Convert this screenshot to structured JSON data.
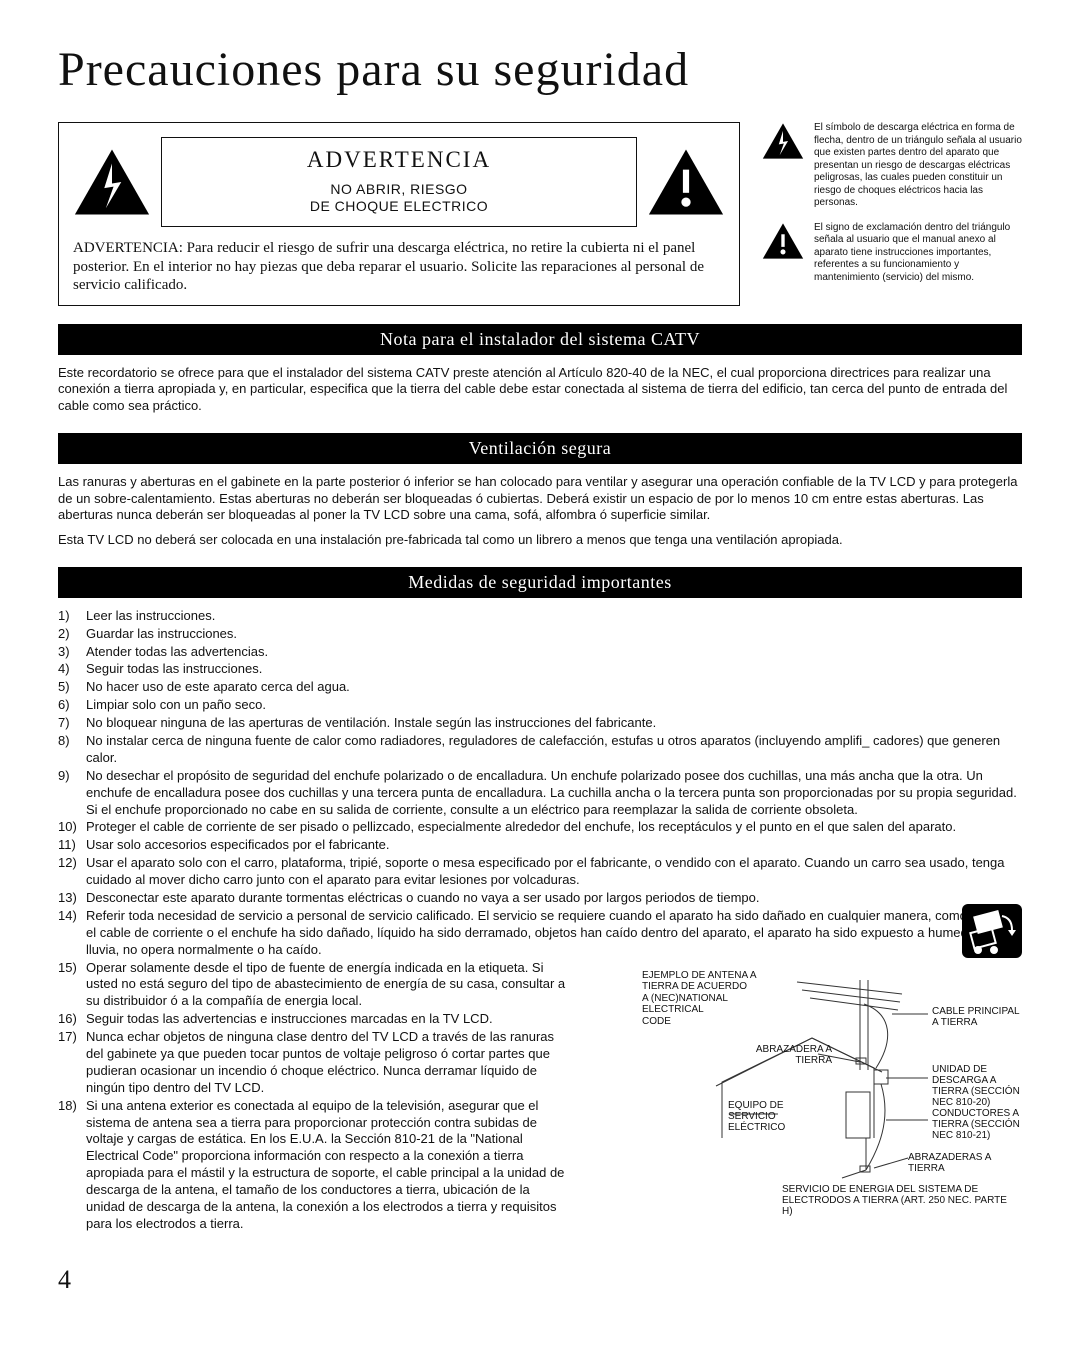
{
  "page": {
    "title": "Precauciones para su seguridad",
    "number": "4"
  },
  "warning_box": {
    "adv_title": "ADVERTENCIA",
    "adv_sub_line1": "NO ABRIR, RIESGO",
    "adv_sub_line2": "DE CHOQUE ELECTRICO",
    "text": "ADVERTENCIA:  Para reducir el riesgo de sufrir una descarga eléctrica, no retire la cubierta ni el panel posterior. En el interior no hay piezas que deba reparar el usuario. Solicite las reparaciones al personal de servicio calificado."
  },
  "side_symbols": {
    "lightning": "El símbolo de descarga eléctrica en forma de flecha, dentro de un triángulo señala al usuario que existen partes dentro del aparato que presentan un riesgo de descargas eléctricas peligrosas, las cuales pueden constituir un riesgo de choques eléctricos hacia las personas.",
    "exclaim": "El signo de exclamación dentro del triángulo señala al usuario que el manual anexo al aparato tiene instrucciones importantes, referentes a su funcionamiento y mantenimiento (servicio) del mismo."
  },
  "sections": {
    "catv": {
      "header": "Nota para el instalador del sistema CATV",
      "body": "Este recordatorio se ofrece para que el instalador del sistema CATV preste atención al Artículo 820-40 de la NEC, el cual proporciona directrices para realizar una conexión a tierra apropiada y, en particular, especifica que la tierra del cable debe estar conectada al sistema de tierra del edificio, tan cerca del punto de entrada del cable como sea práctico."
    },
    "vent": {
      "header": "Ventilación segura",
      "body1": "Las ranuras y aberturas en el gabinete en la parte posterior ó inferior se han colocado para ventilar y asegurar una operación confiable de la TV LCD y para protegerla de un sobre-calentamiento. Estas aberturas no deberán ser bloqueadas ó cubiertas. Deberá existir un espacio de por lo menos 10 cm entre estas aberturas. Las aberturas nunca deberán ser bloqueadas al poner la TV LCD sobre una cama, sofá, alfombra ó superficie similar.",
      "body2": "Esta TV LCD no deberá ser colocada en una instalación pre-fabricada tal como un librero a menos que tenga una ventilación apropiada."
    },
    "safety": {
      "header": "Medidas de seguridad importantes",
      "items": [
        "Leer las instrucciones.",
        "Guardar las instrucciones.",
        "Atender todas las advertencias.",
        "Seguir todas las instrucciones.",
        "No hacer uso de este aparato cerca del agua.",
        "Limpiar solo con un paño seco.",
        "No bloquear ninguna de las aperturas de ventilación. Instale según las instrucciones del fabricante.",
        "No instalar cerca de ninguna fuente de calor como radiadores, reguladores de calefacción, estufas u otros aparatos (incluyendo amplifi_ cadores) que generen calor.",
        "No desechar el propósito de seguridad del enchufe polarizado o de encalladura. Un enchufe polarizado posee dos cuchillas, una más ancha que la otra. Un enchufe de encalladura posee dos cuchillas y una tercera punta de encalladura. La cuchilla ancha o la tercera punta son proporcionadas por su propia seguridad. Si el enchufe proporcionado no cabe en su salida de corriente, consulte a un eléctrico para reemplazar la salida de corriente obsoleta.",
        "Proteger el cable de corriente de ser pisado o pellizcado, especialmente alrededor del enchufe, los receptáculos y el punto en el que salen del aparato.",
        "Usar solo accesorios especificados por el fabricante.",
        "Usar el aparato solo con el carro, plataforma, tripié, soporte o mesa especificado por el fabricante, o vendido con el aparato. Cuando un carro sea usado, tenga cuidado al mover dicho carro junto con el aparato para evitar lesiones por volcaduras.",
        "Desconectar este aparato durante tormentas eléctricas o cuando no vaya a ser usado por largos periodos de tiempo.",
        "Referir toda necesidad de servicio a personal de servicio calificado. El servicio se requiere cuando el aparato ha sido dañado en cualquier manera, como cuando el cable de corriente o el enchufe ha sido dañado, líquido ha sido derramado, objetos han caído dentro del aparato, el aparato ha sido expuesto a humedad o lluvia, no opera normalmente o ha caído.",
        "Operar solamente desde el tipo de fuente de energía indicada en la etiqueta. Si usted no está seguro del tipo de abastecimiento de energía de su casa, consultar a su distribuidor ó a la compañía de energia local.",
        "Seguir todas las advertencias e instrucciones marcadas en la TV LCD.",
        "Nunca echar objetos de ninguna clase dentro del TV LCD a través de las ranuras del gabinete ya que pueden tocar puntos de voltaje peligroso ó cortar partes que pudieran ocasionar un incendio ó choque eléctrico. Nunca derramar líquido de ningún tipo dentro del TV LCD.",
        "Si una antena exterior es conectada aI equipo de la televisión, asegurar que el sistema de antena sea a tierra para proporcionar protección contra subidas de voltaje y cargas de estática. En los E.U.A. la Sección 810-21 de la \"National Electrical Code\" proporciona información con respecto a la conexión a tierra apropiada para el mástil y la estructura de soporte, el cable principal a la unidad de descarga de la antena, el tamaño de los conductores a tierra, ubicación de la unidad de descarga de la antena, la conexión a los electrodos a tierra y requisitos para los electrodos a tierra."
      ]
    }
  },
  "diagram": {
    "title1": "EJEMPLO DE ANTENA A",
    "title2": "TIERRA DE ACUERDO",
    "title3": "A (NEC)NATIONAL",
    "title4": "ELECTRICAL",
    "title5": "CODE",
    "labels": {
      "cable": "CABLE PRINCIPAL A TIERRA",
      "clamp1": "ABRAZADERA A TIERRA",
      "unit": "UNIDAD DE DESCARGA A TIERRA (SECCIÓN NEC 810-20)",
      "equip": "EQUIPO DE SERVICIO ELÉCTRICO",
      "conductors": "CONDUCTORES A TIERRA (SECCIÓN NEC 810-21)",
      "clamp2": "ABRAZADERAS A TIERRA",
      "service": "SERVICIO DE ENERGIA DEL SISTEMA DE ELECTRODOS A TIERRA (ART. 250 NEC. PARTE H)"
    }
  },
  "colors": {
    "black": "#000000",
    "white": "#ffffff",
    "grid": "#888888"
  }
}
